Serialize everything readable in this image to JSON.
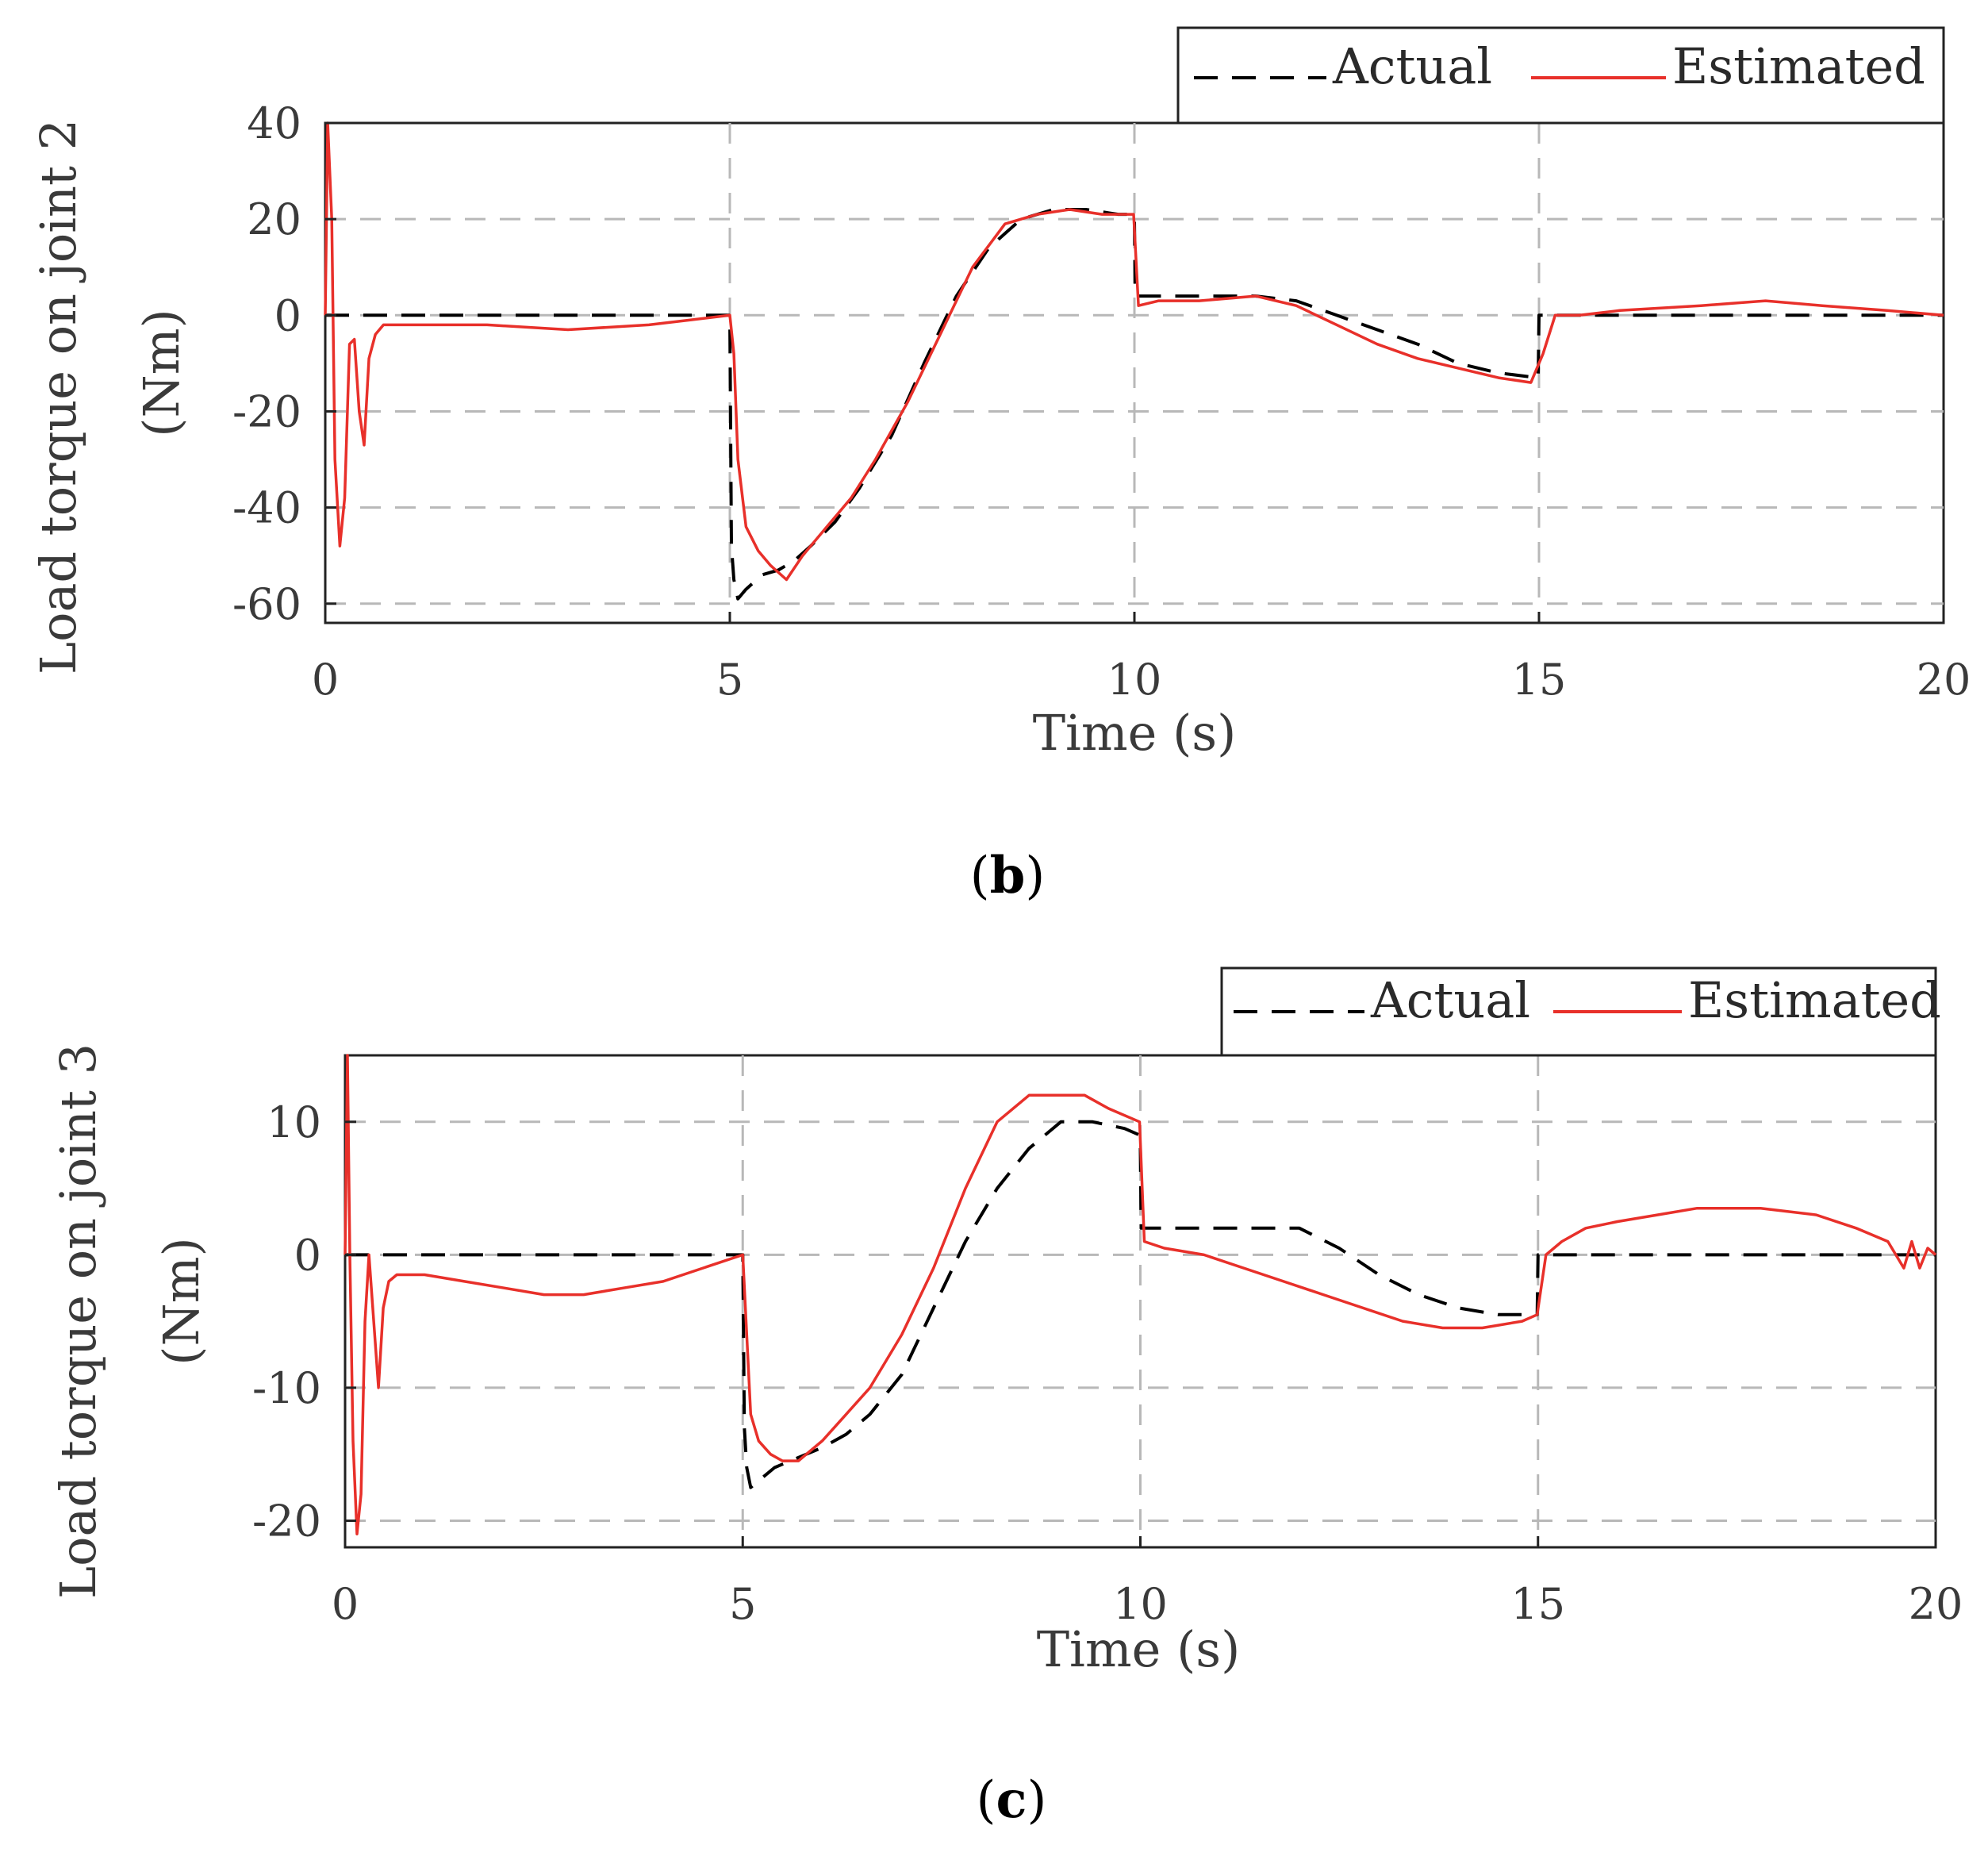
{
  "chart_data": [
    {
      "type": "line",
      "panel_label": "b",
      "caption_open": "(",
      "caption_close": ")",
      "title": "",
      "xlabel": "Time (s)",
      "ylabel_line1": "Load torque on joint 2",
      "ylabel_line2": "(Nm)",
      "xlim": [
        0,
        20
      ],
      "ylim": [
        -64,
        40
      ],
      "xticks": [
        0,
        5,
        10,
        15,
        20
      ],
      "yticks": [
        40,
        20,
        0,
        -20,
        -40,
        -60
      ],
      "xtick_labels": [
        "0",
        "5",
        "10",
        "15",
        "20"
      ],
      "ytick_labels": [
        "40",
        "20",
        "0",
        "-20",
        "-40",
        "-60"
      ],
      "grid": true,
      "legend": "top-right",
      "series": [
        {
          "name": "Actual",
          "color": "#000000",
          "style": "dashed",
          "x": [
            0,
            5,
            5.02,
            5.05,
            5.1,
            5.2,
            5.4,
            5.6,
            5.8,
            6.0,
            6.3,
            6.6,
            7.0,
            7.4,
            7.8,
            8.2,
            8.6,
            9.0,
            9.4,
            9.8,
            9.99,
            10.0,
            10.01,
            10.5,
            11.0,
            11.5,
            12.0,
            12.5,
            13.0,
            13.5,
            14.0,
            14.5,
            14.99,
            15.0,
            20
          ],
          "y": [
            0,
            0,
            -48,
            -55,
            -59,
            -57,
            -54,
            -53,
            -51,
            -48,
            -43,
            -36,
            -25,
            -10,
            4,
            14,
            20,
            22,
            22,
            21,
            21,
            20,
            4,
            4,
            4,
            4,
            3,
            0,
            -3,
            -6,
            -10,
            -12,
            -13,
            0,
            0
          ]
        },
        {
          "name": "Estimated",
          "color": "#e8302a",
          "style": "solid",
          "x": [
            0,
            0.03,
            0.08,
            0.12,
            0.18,
            0.24,
            0.3,
            0.36,
            0.42,
            0.48,
            0.54,
            0.62,
            0.72,
            0.9,
            1.2,
            2.0,
            3.0,
            4.0,
            4.5,
            5.0,
            5.05,
            5.1,
            5.2,
            5.35,
            5.5,
            5.7,
            5.9,
            6.2,
            6.5,
            6.8,
            7.2,
            7.6,
            8.0,
            8.4,
            8.8,
            9.2,
            9.6,
            9.99,
            10.05,
            10.3,
            10.8,
            11.5,
            12.0,
            12.5,
            13.0,
            13.5,
            14.0,
            14.5,
            14.9,
            15.05,
            15.2,
            15.5,
            16.0,
            17.0,
            17.8,
            18.5,
            19.3,
            20
          ],
          "y": [
            0,
            40,
            20,
            -30,
            -48,
            -38,
            -6,
            -5,
            -20,
            -27,
            -9,
            -4,
            -2,
            -2,
            -2,
            -2,
            -3,
            -2,
            -1,
            0,
            -8,
            -30,
            -44,
            -49,
            -52,
            -55,
            -50,
            -44,
            -38,
            -30,
            -18,
            -4,
            10,
            19,
            21,
            22,
            21,
            21,
            2,
            3,
            3,
            4,
            2,
            -2,
            -6,
            -9,
            -11,
            -13,
            -14,
            -8,
            0,
            0,
            1,
            2,
            3,
            2,
            1,
            0
          ]
        }
      ]
    },
    {
      "type": "line",
      "panel_label": "c",
      "caption_open": "(",
      "caption_close": ")",
      "title": "",
      "xlabel": "Time (s)",
      "ylabel_line1": "Load torque on joint 3",
      "ylabel_line2": "(Nm)",
      "xlim": [
        0,
        20
      ],
      "ylim": [
        -22,
        15
      ],
      "xticks": [
        0,
        5,
        10,
        15,
        20
      ],
      "yticks": [
        10,
        0,
        -10,
        -20
      ],
      "xtick_labels": [
        "0",
        "5",
        "10",
        "15",
        "20"
      ],
      "ytick_labels": [
        "10",
        "0",
        "-10",
        "-20"
      ],
      "grid": true,
      "legend": "top-right",
      "series": [
        {
          "name": "Actual",
          "color": "#000000",
          "style": "dashed",
          "x": [
            0,
            5,
            5.02,
            5.05,
            5.1,
            5.2,
            5.4,
            5.6,
            5.8,
            6.0,
            6.3,
            6.6,
            7.0,
            7.4,
            7.8,
            8.2,
            8.6,
            9.0,
            9.4,
            9.8,
            9.99,
            10.0,
            10.01,
            10.5,
            11.0,
            11.5,
            12.0,
            12.5,
            13.0,
            13.5,
            14.0,
            14.5,
            14.99,
            15.0,
            20
          ],
          "y": [
            0,
            0,
            -13,
            -16,
            -17.5,
            -17,
            -16,
            -15.5,
            -15,
            -14.5,
            -13.5,
            -12,
            -9,
            -4,
            1,
            5,
            8,
            10,
            10,
            9.5,
            9,
            8,
            2,
            2,
            2,
            2,
            2,
            0.5,
            -1.5,
            -3,
            -4,
            -4.5,
            -4.5,
            0,
            0
          ]
        },
        {
          "name": "Estimated",
          "color": "#e8302a",
          "style": "solid",
          "x": [
            0,
            0.03,
            0.06,
            0.1,
            0.15,
            0.2,
            0.25,
            0.3,
            0.36,
            0.42,
            0.48,
            0.55,
            0.65,
            0.8,
            1.0,
            1.5,
            2.0,
            2.5,
            3.0,
            3.5,
            4.0,
            4.5,
            5.0,
            5.05,
            5.1,
            5.2,
            5.35,
            5.5,
            5.7,
            6.0,
            6.3,
            6.6,
            7.0,
            7.4,
            7.8,
            8.2,
            8.6,
            9.0,
            9.3,
            9.6,
            9.99,
            10.05,
            10.3,
            10.8,
            11.3,
            11.8,
            12.3,
            12.8,
            13.3,
            13.8,
            14.3,
            14.8,
            14.99,
            15.1,
            15.3,
            15.6,
            16.0,
            16.5,
            17.0,
            17.8,
            18.5,
            19.0,
            19.4,
            19.6,
            19.7,
            19.8,
            19.9,
            20
          ],
          "y": [
            0,
            15,
            0,
            -14,
            -21,
            -18,
            -5,
            0,
            -5,
            -10,
            -4,
            -2,
            -1.5,
            -1.5,
            -1.5,
            -2,
            -2.5,
            -3,
            -3,
            -2.5,
            -2,
            -1,
            0,
            -6,
            -12,
            -14,
            -15,
            -15.5,
            -15.5,
            -14,
            -12,
            -10,
            -6,
            -1,
            5,
            10,
            12,
            12,
            12,
            11,
            10,
            1,
            0.5,
            0,
            -1,
            -2,
            -3,
            -4,
            -5,
            -5.5,
            -5.5,
            -5,
            -4.5,
            0,
            1,
            2,
            2.5,
            3,
            3.5,
            3.5,
            3,
            2,
            1,
            -1,
            1,
            -1,
            0.5,
            0
          ]
        }
      ]
    }
  ]
}
